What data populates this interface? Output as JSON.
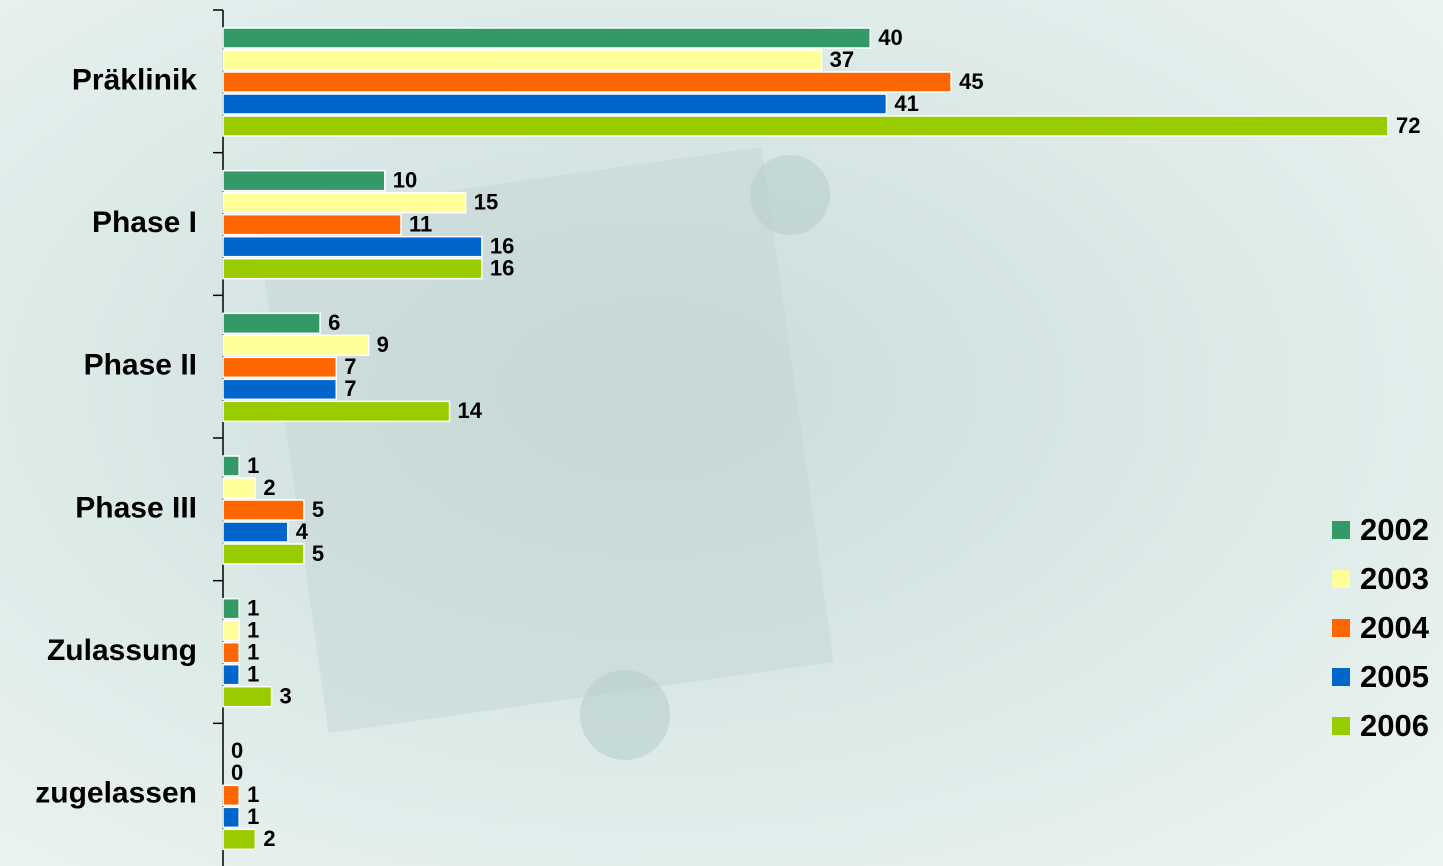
{
  "chart_data": {
    "type": "bar",
    "orientation": "horizontal",
    "categories": [
      "Präklinik",
      "Phase I",
      "Phase II",
      "Phase III",
      "Zulassung",
      "zugelassen"
    ],
    "series": [
      {
        "name": "2002",
        "color": "#339966",
        "values": [
          40,
          10,
          6,
          1,
          1,
          0
        ]
      },
      {
        "name": "2003",
        "color": "#ffff99",
        "values": [
          37,
          15,
          9,
          2,
          1,
          0
        ]
      },
      {
        "name": "2004",
        "color": "#ff6600",
        "values": [
          45,
          11,
          7,
          5,
          1,
          1
        ]
      },
      {
        "name": "2005",
        "color": "#0066cc",
        "values": [
          41,
          16,
          7,
          4,
          1,
          1
        ]
      },
      {
        "name": "2006",
        "color": "#99cc00",
        "values": [
          72,
          16,
          14,
          5,
          3,
          2
        ]
      }
    ],
    "legend": "right"
  }
}
